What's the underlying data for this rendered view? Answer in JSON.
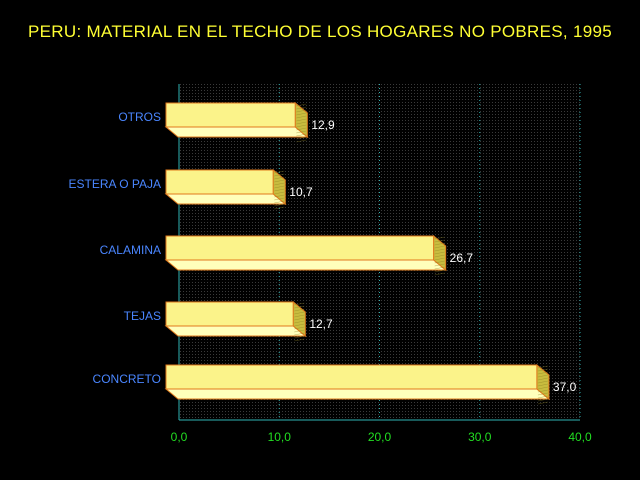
{
  "chart_data": {
    "type": "bar",
    "orientation": "horizontal",
    "title": "PERU: MATERIAL EN EL TECHO DE LOS HOGARES NO POBRES, 1995",
    "xlabel": "",
    "ylabel": "",
    "categories": [
      "OTROS",
      "ESTERA O PAJA",
      "CALAMINA",
      "TEJAS",
      "CONCRETO"
    ],
    "values": [
      12.9,
      10.7,
      26.7,
      12.7,
      37.0
    ],
    "value_labels": [
      "12,9",
      "10,7",
      "26,7",
      "12,7",
      "37,0"
    ],
    "xlim": [
      0,
      40
    ],
    "x_ticks": [
      0,
      10,
      20,
      30,
      40
    ],
    "x_tick_labels": [
      "0,0",
      "10,0",
      "20,0",
      "30,0",
      "40,0"
    ],
    "grid": "vertical dotted",
    "legend": "none",
    "style": "3d bars",
    "colors": {
      "title": "#ffff33",
      "category_labels": "#4a86ff",
      "tick_labels": "#22dd22",
      "value_labels": "#ffffff",
      "axis": "#2fb3b3",
      "grid": "#2fb3b3",
      "bar_front": "#fbf38a",
      "bar_top": "#ffffbb",
      "bar_side": "#c8bc3e",
      "bar_edge": "#e07a1c"
    }
  }
}
